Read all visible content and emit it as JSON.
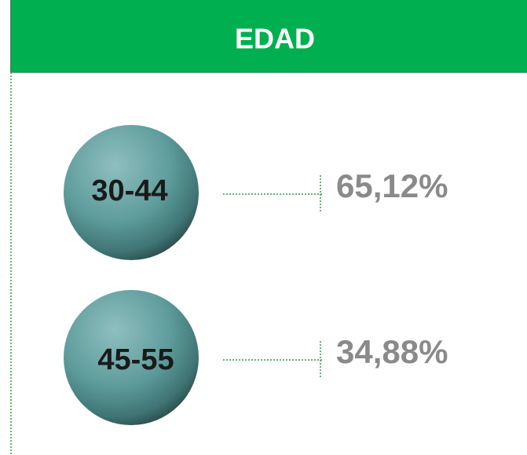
{
  "header": {
    "title": "EDAD"
  },
  "items": [
    {
      "label": "30-44",
      "value": "65,12%"
    },
    {
      "label": "45-55",
      "value": "34,88%"
    }
  ]
}
